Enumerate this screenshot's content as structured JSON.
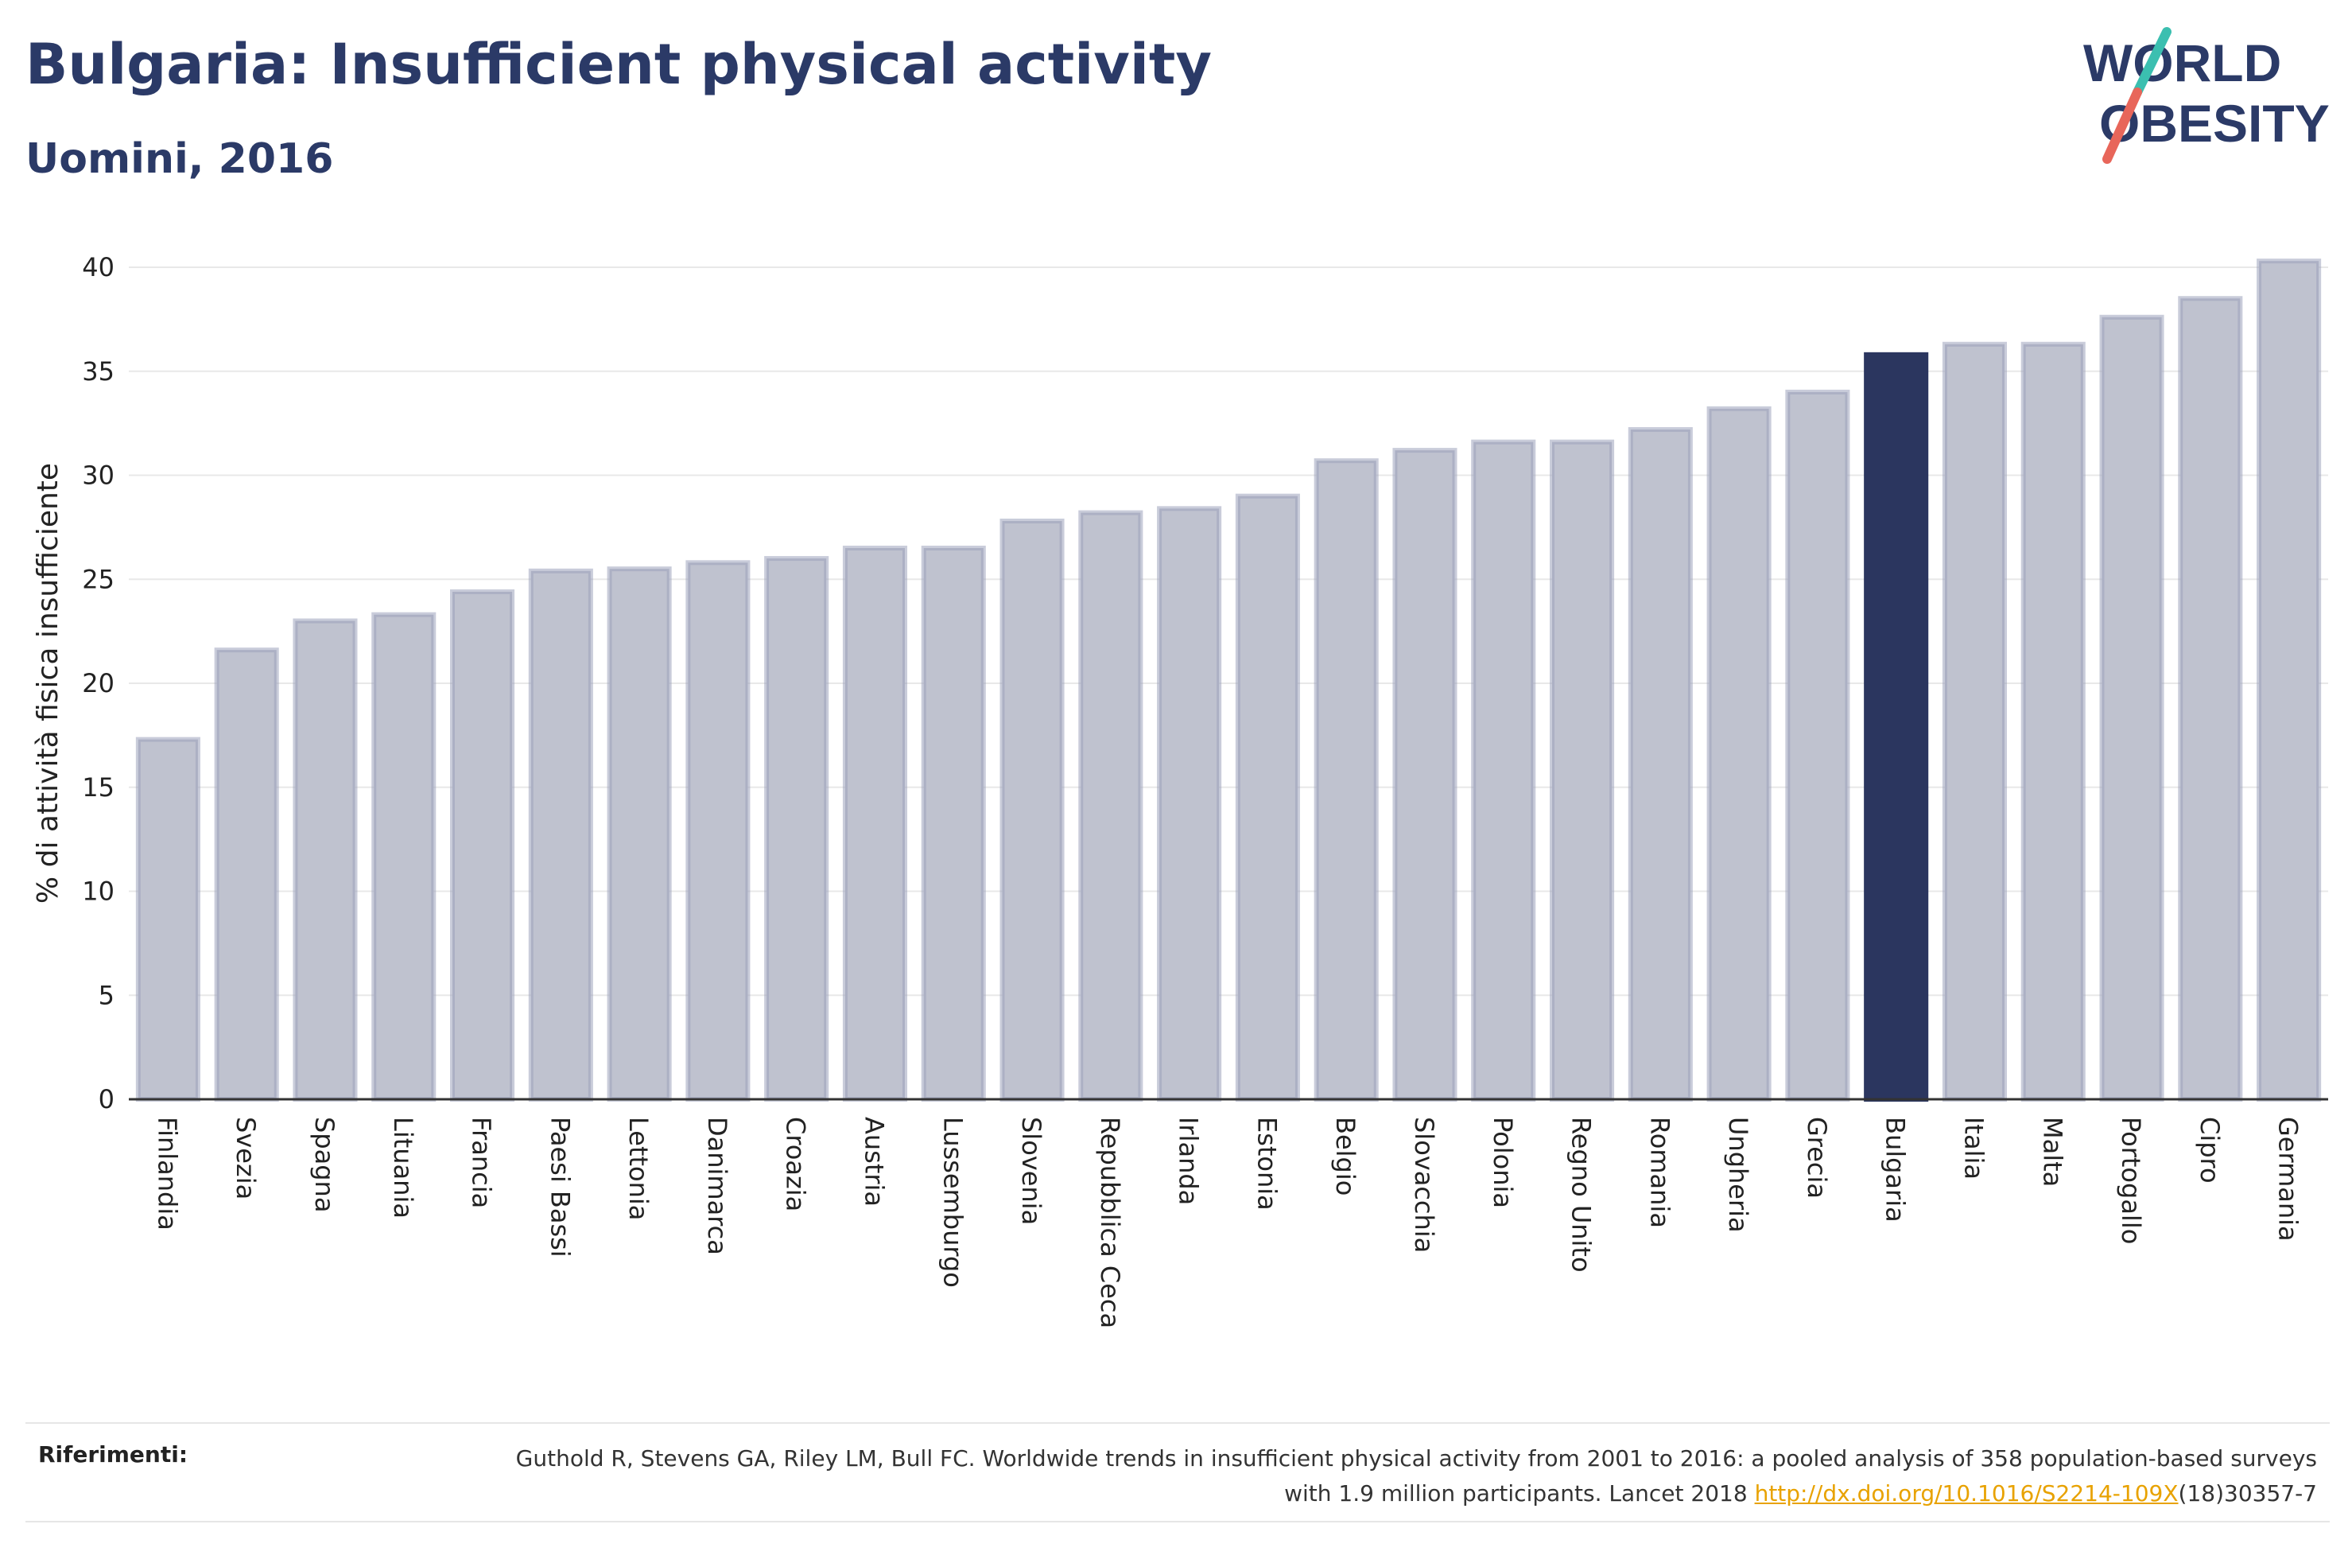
{
  "header": {
    "title": "Bulgaria: Insufficient physical activity",
    "subtitle": "Uomini, 2016"
  },
  "logo": {
    "line1": "WORLD",
    "line2": "OBESITY"
  },
  "colors": {
    "bar": "#bfc2cf",
    "bar_stroke": "#9da3bb",
    "highlight": "#2b365f",
    "text": "#2b3a67",
    "grid": "#e8e8e8"
  },
  "chart_data": {
    "type": "bar",
    "ylabel": "% di attività fisica insufficiente",
    "ylim": [
      0,
      40
    ],
    "yticks": [
      0,
      5,
      10,
      15,
      20,
      25,
      30,
      35,
      40
    ],
    "highlight": "Bulgaria",
    "categories": [
      "Finlandia",
      "Svezia",
      "Spagna",
      "Lituania",
      "Francia",
      "Paesi Bassi",
      "Lettonia",
      "Danimarca",
      "Croazia",
      "Austria",
      "Lussemburgo",
      "Slovenia",
      "Repubblica Ceca",
      "Irlanda",
      "Estonia",
      "Belgio",
      "Slovacchia",
      "Polonia",
      "Regno Unito",
      "Romania",
      "Ungheria",
      "Grecia",
      "Bulgaria",
      "Italia",
      "Malta",
      "Portogallo",
      "Cipro",
      "Germania"
    ],
    "values": [
      17.3,
      21.6,
      23.0,
      23.3,
      24.4,
      25.4,
      25.5,
      25.8,
      26.0,
      26.5,
      26.5,
      27.8,
      28.2,
      28.4,
      29.0,
      30.7,
      31.2,
      31.6,
      31.6,
      32.2,
      33.2,
      34.0,
      35.8,
      36.3,
      36.3,
      37.6,
      38.5,
      40.3
    ],
    "grid": true,
    "legend": "none"
  },
  "references": {
    "label": "Riferimenti:",
    "text_before": "Guthold R, Stevens GA, Riley LM, Bull FC. Worldwide trends in insufficient physical activity from 2001 to 2016: a pooled analysis of 358 population-based surveys with 1.9 million participants. Lancet 2018 ",
    "link": "http://dx.doi.org/10.1016/S2214-109X",
    "text_after": "(18)30357-7"
  }
}
